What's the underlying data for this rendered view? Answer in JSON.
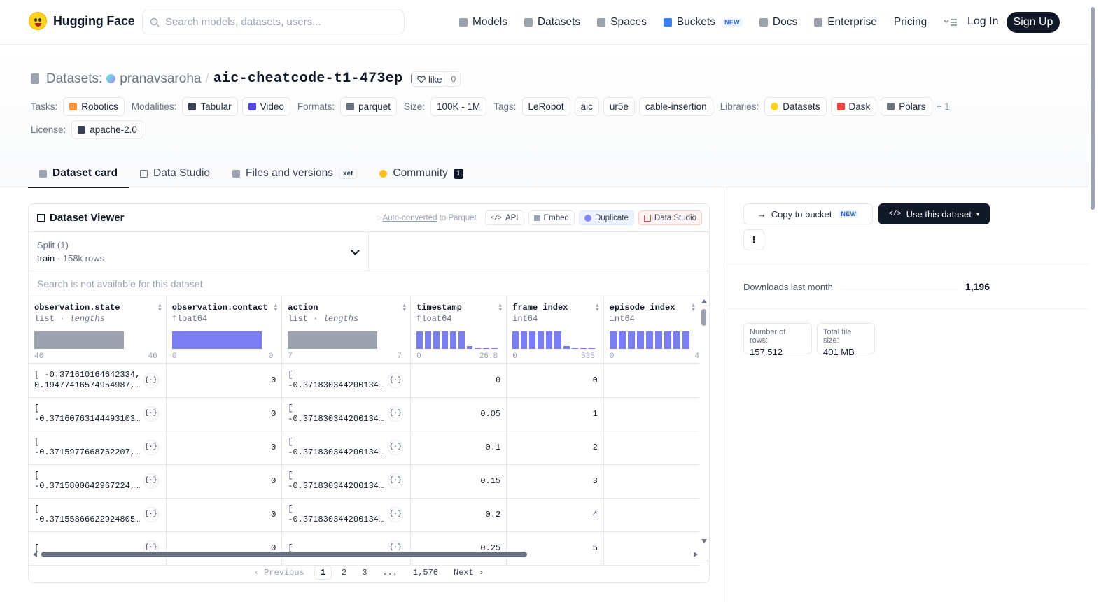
{
  "nav": {
    "brand": "Hugging Face",
    "search_placeholder": "Search models, datasets, users...",
    "links": [
      {
        "label": "Models"
      },
      {
        "label": "Datasets"
      },
      {
        "label": "Spaces"
      },
      {
        "label": "Buckets",
        "badge": "NEW"
      },
      {
        "label": "Docs"
      },
      {
        "label": "Enterprise"
      },
      {
        "label": "Pricing"
      }
    ],
    "login": "Log In",
    "signup": "Sign Up"
  },
  "repo": {
    "section": "Datasets:",
    "owner": "pranavsaroha",
    "separator": "/",
    "name": "aic-cheatcode-t1-473ep",
    "like_label": "like",
    "like_count": "0"
  },
  "tags": {
    "tasks_label": "Tasks:",
    "tasks": [
      "Robotics"
    ],
    "modalities_label": "Modalities:",
    "modalities": [
      "Tabular",
      "Video"
    ],
    "formats_label": "Formats:",
    "formats": [
      "parquet"
    ],
    "size_label": "Size:",
    "size": "100K - 1M",
    "tags_label": "Tags:",
    "tags": [
      "LeRobot",
      "aic",
      "ur5e",
      "cable-insertion"
    ],
    "libraries_label": "Libraries:",
    "libraries": [
      "Datasets",
      "Dask",
      "Polars"
    ],
    "libraries_more": "+ 1",
    "license_label": "License:",
    "license": "apache-2.0"
  },
  "tabs": [
    {
      "label": "Dataset card",
      "active": true
    },
    {
      "label": "Data Studio"
    },
    {
      "label": "Files and versions",
      "badge": "xet"
    },
    {
      "label": "Community",
      "count": "1"
    }
  ],
  "viewer": {
    "title": "Dataset Viewer",
    "note_link": "Auto-converted",
    "note_rest": " to Parquet",
    "buttons": [
      "API",
      "Embed",
      "Duplicate",
      "Data Studio"
    ],
    "split_label": "Split (1)",
    "split_name": "train",
    "split_rows": "158k rows",
    "search_disabled": "Search is not available for this dataset",
    "columns": [
      {
        "name": "observation.state",
        "type": "list",
        "type_extra": "lengths",
        "min": "46",
        "max": "46"
      },
      {
        "name": "observation.contact",
        "type": "float64",
        "min": "0",
        "max": "0"
      },
      {
        "name": "action",
        "type": "list",
        "type_extra": "lengths",
        "min": "7",
        "max": "7"
      },
      {
        "name": "timestamp",
        "type": "float64",
        "min": "0",
        "max": "26.8"
      },
      {
        "name": "frame_index",
        "type": "int64",
        "min": "0",
        "max": "535"
      },
      {
        "name": "episode_index",
        "type": "int64",
        "min": "0",
        "max": "4"
      }
    ],
    "rows": [
      {
        "state": "[ -0.371610164642334,\n0.19477416574954987,…",
        "contact": "0",
        "action": "[\n-0.371830344200134…",
        "timestamp": "0",
        "frame_index": "0"
      },
      {
        "state": "[\n-0.37160763144493103…",
        "contact": "0",
        "action": "[\n-0.371830344200134…",
        "timestamp": "0.05",
        "frame_index": "1"
      },
      {
        "state": "[\n-0.3715977668762207,…",
        "contact": "0",
        "action": "[\n-0.371830344200134…",
        "timestamp": "0.1",
        "frame_index": "2"
      },
      {
        "state": "[\n-0.3715800642967224,…",
        "contact": "0",
        "action": "[\n-0.371830344200134…",
        "timestamp": "0.15",
        "frame_index": "3"
      },
      {
        "state": "[\n-0.37155866622924805…",
        "contact": "0",
        "action": "[\n-0.371830344200134…",
        "timestamp": "0.2",
        "frame_index": "4"
      },
      {
        "state": "[",
        "contact": "0",
        "action": "[",
        "timestamp": "0.25",
        "frame_index": "5"
      }
    ],
    "pagination": {
      "prev": "Previous",
      "pages": [
        "1",
        "2",
        "3",
        "...",
        "1,576"
      ],
      "next": "Next"
    }
  },
  "side": {
    "copy_bucket": "Copy to bucket",
    "copy_bucket_badge": "NEW",
    "use_dataset": "Use this dataset",
    "downloads_label": "Downloads last month",
    "downloads_value": "1,196",
    "rows_label": "Number of rows:",
    "rows_value": "157,512",
    "size_label": "Total file size:",
    "size_value": "401 MB"
  },
  "colors": {
    "accent": "#6366f1",
    "dark": "#111827",
    "border": "#e5e7eb"
  }
}
